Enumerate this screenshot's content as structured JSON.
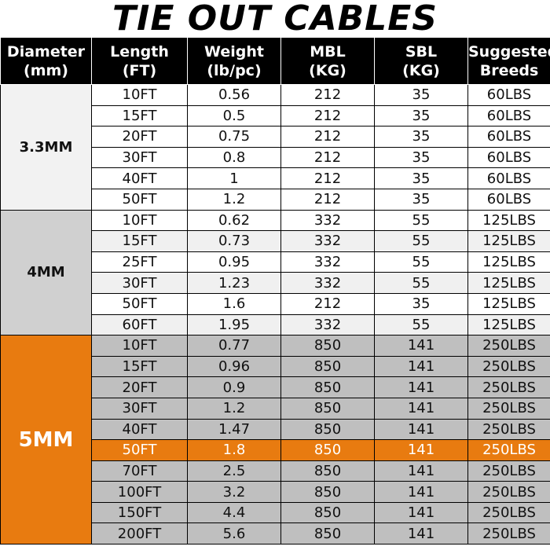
{
  "title": "TIE OUT CABLES",
  "headers": [
    [
      "Diameter",
      "(mm)"
    ],
    [
      "Length",
      "(FT)"
    ],
    [
      "Weight",
      "(lb/pc)"
    ],
    [
      "MBL",
      "(KG)"
    ],
    [
      "SBL",
      "(KG)"
    ],
    [
      "Suggested",
      "Breeds"
    ]
  ],
  "groups": [
    {
      "diameter": "3.3MM",
      "rows": [
        [
          "10FT",
          "0.56",
          "212",
          "35",
          "60LBS"
        ],
        [
          "15FT",
          "0.5",
          "212",
          "35",
          "60LBS"
        ],
        [
          "20FT",
          "0.75",
          "212",
          "35",
          "60LBS"
        ],
        [
          "30FT",
          "0.8",
          "212",
          "35",
          "60LBS"
        ],
        [
          "40FT",
          "1",
          "212",
          "35",
          "60LBS"
        ],
        [
          "50FT",
          "1.2",
          "212",
          "35",
          "60LBS"
        ]
      ]
    },
    {
      "diameter": "4MM",
      "rows": [
        [
          "10FT",
          "0.62",
          "332",
          "55",
          "125LBS"
        ],
        [
          "15FT",
          "0.73",
          "332",
          "55",
          "125LBS"
        ],
        [
          "25FT",
          "0.95",
          "332",
          "55",
          "125LBS"
        ],
        [
          "30FT",
          "1.23",
          "332",
          "55",
          "125LBS"
        ],
        [
          "50FT",
          "1.6",
          "212",
          "35",
          "125LBS"
        ],
        [
          "60FT",
          "1.95",
          "332",
          "55",
          "125LBS"
        ]
      ]
    },
    {
      "diameter": "5MM",
      "highlight_row": 5,
      "rows": [
        [
          "10FT",
          "0.77",
          "850",
          "141",
          "250LBS"
        ],
        [
          "15FT",
          "0.96",
          "850",
          "141",
          "250LBS"
        ],
        [
          "20FT",
          "0.9",
          "850",
          "141",
          "250LBS"
        ],
        [
          "30FT",
          "1.2",
          "850",
          "141",
          "250LBS"
        ],
        [
          "40FT",
          "1.47",
          "850",
          "141",
          "250LBS"
        ],
        [
          "50FT",
          "1.8",
          "850",
          "141",
          "250LBS"
        ],
        [
          "70FT",
          "2.5",
          "850",
          "141",
          "250LBS"
        ],
        [
          "100FT",
          "3.2",
          "850",
          "141",
          "250LBS"
        ],
        [
          "150FT",
          "4.4",
          "850",
          "141",
          "250LBS"
        ],
        [
          "200FT",
          "5.6",
          "850",
          "141",
          "250LBS"
        ]
      ]
    }
  ],
  "colors": {
    "header_bg": "#000000",
    "accent": "#e87b10",
    "group1_diameter_bg": "#f2f2f2",
    "group2_diameter_bg": "#d0d0d0",
    "group3_row_bg": "#bfbfbf"
  }
}
